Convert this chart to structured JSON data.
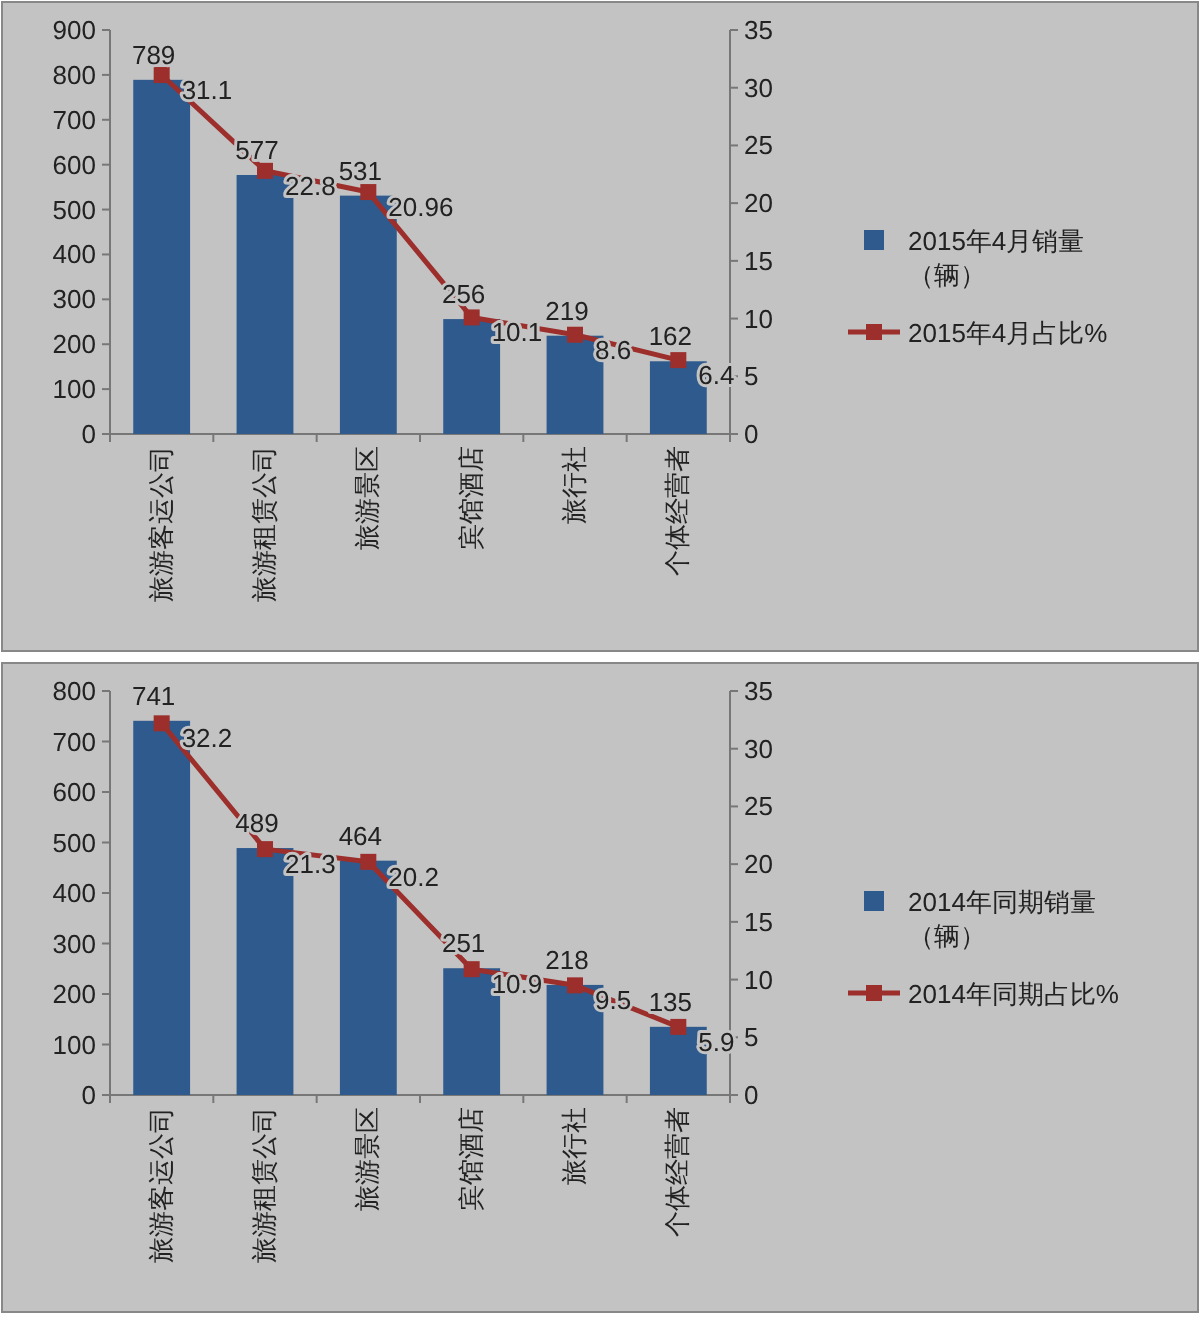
{
  "chart_data": [
    {
      "type": "bar",
      "categories": [
        "旅游客运公司",
        "旅游租赁公司",
        "旅游景区",
        "宾馆酒店",
        "旅行社",
        "个体经营者"
      ],
      "series": [
        {
          "name": "2015年4月销量（辆）",
          "color": "#2e5a8e",
          "values": [
            789,
            577,
            531,
            256,
            219,
            162
          ]
        },
        {
          "name": "2015年4月占比%",
          "type": "line",
          "axis": "y2",
          "marker": "square",
          "color": "#9c2f2b",
          "values": [
            31.1,
            22.8,
            20.96,
            10.1,
            8.6,
            6.4
          ]
        }
      ],
      "ylim": [
        0,
        900
      ],
      "yticks": [
        0,
        100,
        200,
        300,
        400,
        500,
        600,
        700,
        800,
        900
      ],
      "y2lim": [
        0,
        35
      ],
      "y2ticks": [
        0,
        5,
        10,
        15,
        20,
        25,
        30,
        35
      ],
      "data_labels": true,
      "legend": "right"
    },
    {
      "type": "bar",
      "categories": [
        "旅游客运公司",
        "旅游租赁公司",
        "旅游景区",
        "宾馆酒店",
        "旅行社",
        "个体经营者"
      ],
      "series": [
        {
          "name": "2014年同期销量（辆）",
          "color": "#2e5a8e",
          "values": [
            741,
            489,
            464,
            251,
            218,
            135
          ]
        },
        {
          "name": "2014年同期占比%",
          "type": "line",
          "axis": "y2",
          "marker": "square",
          "color": "#9c2f2b",
          "values": [
            32.2,
            21.3,
            20.2,
            10.9,
            9.5,
            5.9
          ]
        }
      ],
      "ylim": [
        0,
        800
      ],
      "yticks": [
        0,
        100,
        200,
        300,
        400,
        500,
        600,
        700,
        800
      ],
      "y2lim": [
        0,
        35
      ],
      "y2ticks": [
        0,
        5,
        10,
        15,
        20,
        25,
        30,
        35
      ],
      "data_labels": true,
      "legend": "right"
    }
  ]
}
